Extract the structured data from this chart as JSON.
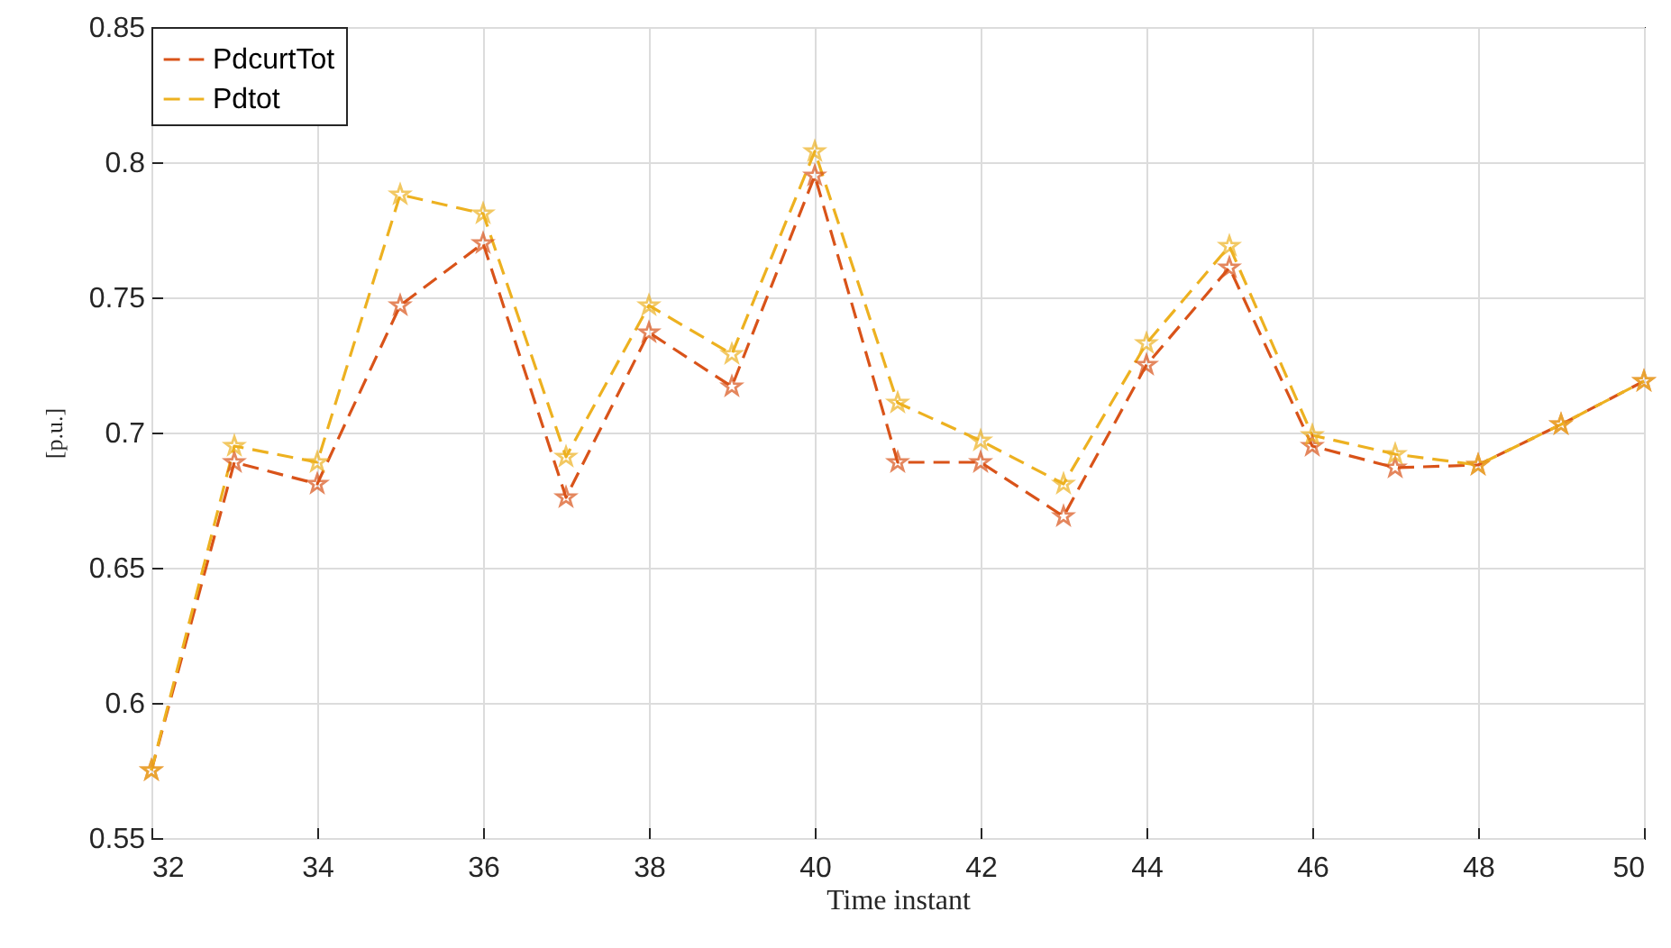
{
  "chart_data": {
    "type": "line",
    "xlabel": "Time instant",
    "ylabel": "[p.u.]",
    "x": [
      32,
      33,
      34,
      35,
      36,
      37,
      38,
      39,
      40,
      41,
      42,
      43,
      44,
      45,
      46,
      47,
      48,
      49,
      50
    ],
    "series": [
      {
        "name": "PdcurtTot",
        "color": "#d95319",
        "values": [
          0.575,
          0.689,
          0.681,
          0.747,
          0.77,
          0.676,
          0.737,
          0.717,
          0.795,
          0.689,
          0.689,
          0.669,
          0.725,
          0.761,
          0.695,
          0.687,
          0.688,
          0.703,
          0.719
        ]
      },
      {
        "name": "Pdtot",
        "color": "#edb120",
        "values": [
          0.575,
          0.695,
          0.689,
          0.788,
          0.781,
          0.691,
          0.747,
          0.729,
          0.804,
          0.711,
          0.697,
          0.681,
          0.733,
          0.769,
          0.699,
          0.692,
          0.688,
          0.703,
          0.719
        ]
      }
    ],
    "xlim": [
      32,
      50
    ],
    "xticks": [
      32,
      34,
      36,
      38,
      40,
      42,
      44,
      46,
      48,
      50
    ],
    "ylim": [
      0.55,
      0.85
    ],
    "yticks": [
      0.55,
      0.6,
      0.65,
      0.7,
      0.75,
      0.8,
      0.85
    ],
    "grid": true,
    "legend": "top left",
    "marker": "star",
    "line_style": "dashed"
  }
}
